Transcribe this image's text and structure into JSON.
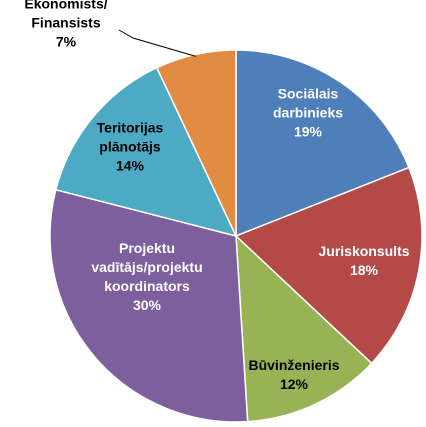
{
  "chart_data": {
    "type": "pie",
    "slices": [
      {
        "label_lines": [
          "Sociālais",
          "darbinieks"
        ],
        "pct_label": "19%",
        "value": 19,
        "color": "#4F7FBA",
        "label_color": "#ffffff"
      },
      {
        "label_lines": [
          "Juriskonsults"
        ],
        "pct_label": "18%",
        "value": 18,
        "color": "#B44A47",
        "label_color": "#ffffff"
      },
      {
        "label_lines": [
          "Būvinženieris"
        ],
        "pct_label": "12%",
        "value": 12,
        "color": "#97B353",
        "label_color": "#000000"
      },
      {
        "label_lines": [
          "Projektu",
          "vadītājs/projektu",
          "koordinators"
        ],
        "pct_label": "30%",
        "value": 30,
        "color": "#7D5F9E",
        "label_color": "#ffffff"
      },
      {
        "label_lines": [
          "Teritorijas",
          "plānotājs"
        ],
        "pct_label": "14%",
        "value": 14,
        "color": "#4CAAC5",
        "label_color": "#000000"
      },
      {
        "label_lines": [
          "Ekonomists/",
          "Finansists"
        ],
        "pct_label": "7%",
        "value": 7,
        "color": "#E28C43",
        "label_color": "#000000"
      }
    ],
    "start": "top",
    "direction": "clockwise",
    "legend": "none"
  }
}
